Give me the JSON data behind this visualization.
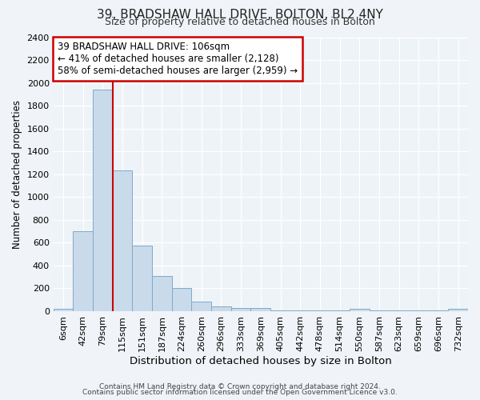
{
  "title1": "39, BRADSHAW HALL DRIVE, BOLTON, BL2 4NY",
  "title2": "Size of property relative to detached houses in Bolton",
  "xlabel": "Distribution of detached houses by size in Bolton",
  "ylabel": "Number of detached properties",
  "bar_labels": [
    "6sqm",
    "42sqm",
    "79sqm",
    "115sqm",
    "151sqm",
    "187sqm",
    "224sqm",
    "260sqm",
    "296sqm",
    "333sqm",
    "369sqm",
    "405sqm",
    "442sqm",
    "478sqm",
    "514sqm",
    "550sqm",
    "587sqm",
    "623sqm",
    "659sqm",
    "696sqm",
    "732sqm"
  ],
  "bar_values": [
    20,
    700,
    1940,
    1230,
    575,
    305,
    200,
    85,
    45,
    30,
    30,
    5,
    5,
    5,
    5,
    20,
    5,
    5,
    5,
    5,
    20
  ],
  "bar_color": "#c9daea",
  "bar_edge_color": "#7faac8",
  "ylim": [
    0,
    2400
  ],
  "yticks": [
    0,
    200,
    400,
    600,
    800,
    1000,
    1200,
    1400,
    1600,
    1800,
    2000,
    2200,
    2400
  ],
  "vline_x": 3.0,
  "vline_color": "#cc0000",
  "annotation_text": "39 BRADSHAW HALL DRIVE: 106sqm\n← 41% of detached houses are smaller (2,128)\n58% of semi-detached houses are larger (2,959) →",
  "footer1": "Contains HM Land Registry data © Crown copyright and database right 2024.",
  "footer2": "Contains public sector information licensed under the Open Government Licence v3.0.",
  "bg_color": "#f0f4f8",
  "plot_bg_color": "#eef3f8",
  "grid_color": "#ffffff",
  "title1_fontsize": 11,
  "title2_fontsize": 9,
  "xlabel_fontsize": 9.5,
  "ylabel_fontsize": 8.5,
  "tick_fontsize": 8,
  "annotation_fontsize": 8.5,
  "footer_fontsize": 6.5
}
